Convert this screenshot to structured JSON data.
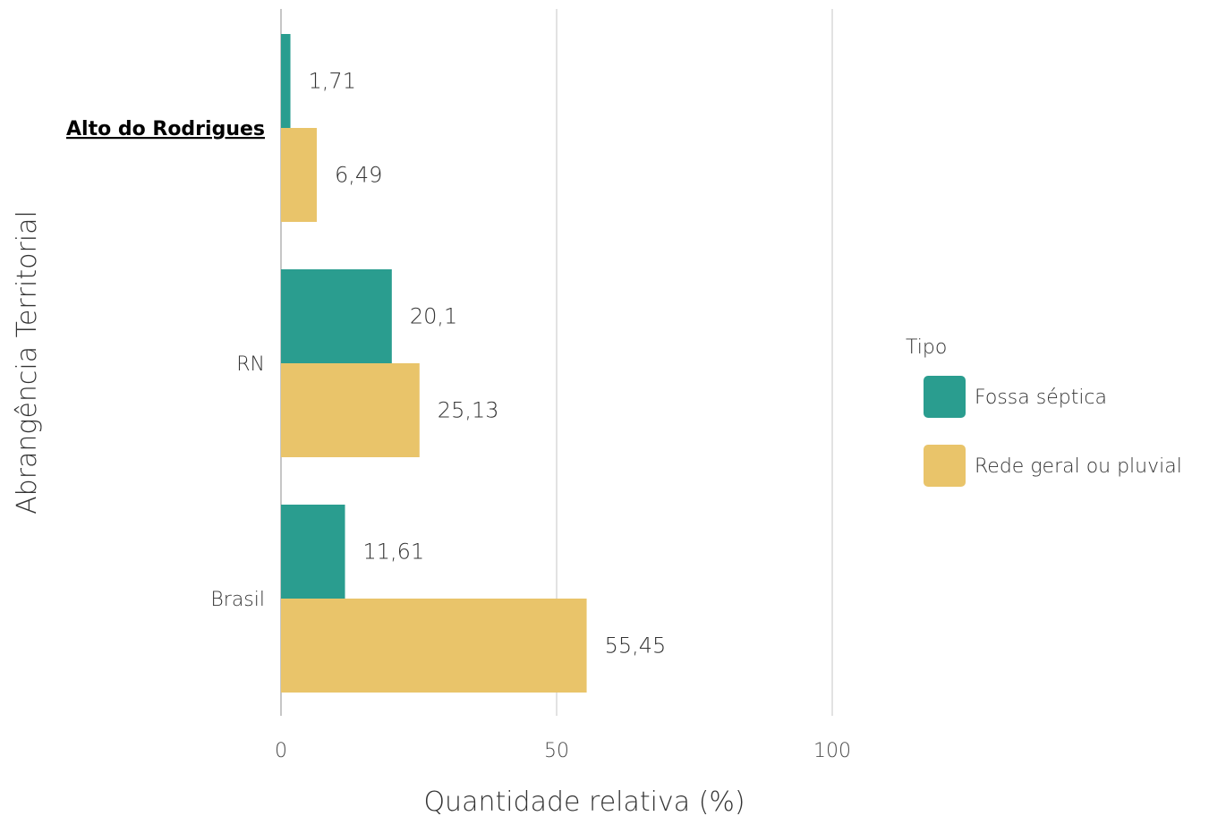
{
  "chart_data": {
    "type": "bar",
    "orientation": "horizontal",
    "categories": [
      "Alto do Rodrigues",
      "RN",
      "Brasil"
    ],
    "highlight_category": "Alto do Rodrigues",
    "series": [
      {
        "name": "Fossa séptica",
        "color": "#2a9d8f",
        "values": [
          1.71,
          20.1,
          11.61
        ],
        "labels": [
          "1,71",
          "20,1",
          "11,61"
        ]
      },
      {
        "name": "Rede geral ou pluvial",
        "color": "#e9c46a",
        "values": [
          6.49,
          25.13,
          55.45
        ],
        "labels": [
          "6,49",
          "25,13",
          "55,45"
        ]
      }
    ],
    "xlabel": "Quantidade relativa (%)",
    "ylabel": "Abrangência Territorial",
    "xlim": [
      0,
      100
    ],
    "xticks": [
      0,
      50,
      100
    ],
    "xtick_labels": [
      "0",
      "50",
      "100"
    ],
    "grid": true,
    "legend": {
      "title": "Tipo",
      "position": "right"
    }
  }
}
